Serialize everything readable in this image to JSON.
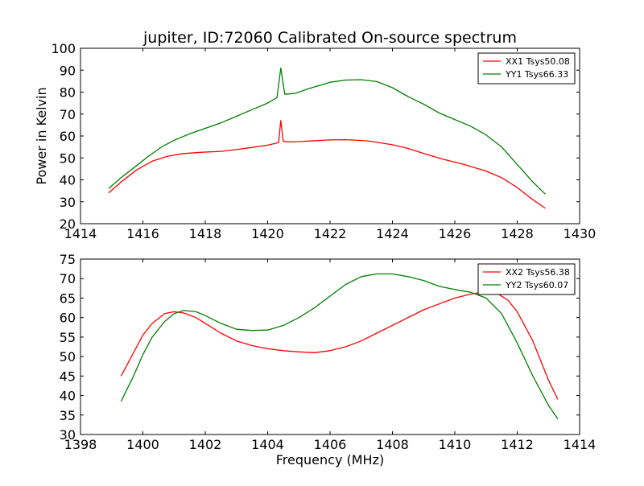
{
  "chart_data": {
    "title": "jupiter, ID:72060 Calibrated On-source spectrum",
    "xlabel": "Frequency (MHz)",
    "ylabel": "Power in Kelvin",
    "colors": {
      "XX": "#ff0000",
      "YY": "#008000"
    },
    "subplots": [
      {
        "type": "line",
        "xlim": [
          1414,
          1430
        ],
        "ylim": [
          20,
          100
        ],
        "xticks": [
          "1414",
          "1416",
          "1418",
          "1420",
          "1422",
          "1424",
          "1426",
          "1428",
          "1430"
        ],
        "yticks": [
          "20",
          "30",
          "40",
          "50",
          "60",
          "70",
          "80",
          "90",
          "100"
        ],
        "legend_position": "top-right",
        "series": [
          {
            "name": "XX1 Tsys50.08",
            "color": "#ff0000",
            "x": [
              1414.9,
              1415.3,
              1415.8,
              1416.3,
              1416.8,
              1417.3,
              1417.9,
              1418.5,
              1419.0,
              1419.5,
              1420.0,
              1420.35,
              1420.42,
              1420.5,
              1420.8,
              1421.3,
              1422.0,
              1422.5,
              1423.2,
              1424.0,
              1424.5,
              1425.0,
              1425.6,
              1426.3,
              1427.0,
              1427.5,
              1428.0,
              1428.4,
              1428.9
            ],
            "y": [
              34,
              39,
              44.5,
              48.5,
              50.8,
              52,
              52.6,
              53,
              53.8,
              54.8,
              55.8,
              57,
              67,
              57.5,
              57.3,
              57.7,
              58.2,
              58.3,
              57.8,
              56,
              54.3,
              52,
              49.5,
              47,
              44,
              41,
              36.5,
              32,
              27
            ]
          },
          {
            "name": "YY1 Tsys66.33",
            "color": "#008000",
            "x": [
              1414.9,
              1415.3,
              1415.8,
              1416.2,
              1416.6,
              1417.0,
              1417.5,
              1418.0,
              1418.5,
              1419.0,
              1419.5,
              1420.0,
              1420.3,
              1420.42,
              1420.55,
              1420.9,
              1421.3,
              1422.0,
              1422.5,
              1423.0,
              1423.5,
              1424.0,
              1424.5,
              1425.0,
              1425.5,
              1426.0,
              1426.5,
              1427.0,
              1427.5,
              1428.0,
              1428.5,
              1428.9
            ],
            "y": [
              36,
              41,
              46.5,
              51,
              55,
              58,
              61,
              63.5,
              66,
              69,
              72,
              75,
              77.5,
              91,
              79,
              79.5,
              81.5,
              84.5,
              85.5,
              85.7,
              84.8,
              82,
              78,
              74.5,
              70.5,
              67.5,
              64.5,
              60.5,
              55,
              47,
              39,
              33.5
            ]
          }
        ]
      },
      {
        "type": "line",
        "xlim": [
          1398,
          1414
        ],
        "ylim": [
          30,
          75
        ],
        "xticks": [
          "1398",
          "1400",
          "1402",
          "1404",
          "1406",
          "1408",
          "1410",
          "1412",
          "1414"
        ],
        "yticks": [
          "30",
          "35",
          "40",
          "45",
          "50",
          "55",
          "60",
          "65",
          "70",
          "75"
        ],
        "legend_position": "top-right",
        "series": [
          {
            "name": "XX2 Tsys56.38",
            "color": "#ff0000",
            "x": [
              1399.3,
              1399.7,
              1400.0,
              1400.3,
              1400.7,
              1401.0,
              1401.3,
              1401.7,
              1402.0,
              1402.5,
              1403.0,
              1403.5,
              1404.0,
              1404.5,
              1405.0,
              1405.5,
              1406.0,
              1406.5,
              1407.0,
              1407.5,
              1408.0,
              1408.5,
              1409.0,
              1409.5,
              1410.0,
              1410.5,
              1411.0,
              1411.3,
              1411.7,
              1412.0,
              1412.5,
              1413.0,
              1413.3
            ],
            "y": [
              45,
              51,
              55.5,
              58.5,
              61,
              61.5,
              61.2,
              60,
              58.5,
              56,
              54,
              52.8,
              52,
              51.5,
              51.2,
              51,
              51.5,
              52.5,
              54,
              56,
              58,
              60,
              62,
              63.5,
              65,
              66,
              66.7,
              66.5,
              64.5,
              61.5,
              54,
              44,
              39
            ]
          },
          {
            "name": "YY2 Tsys60.07",
            "color": "#008000",
            "x": [
              1399.3,
              1399.7,
              1400.0,
              1400.3,
              1400.7,
              1401.0,
              1401.3,
              1401.7,
              1402.0,
              1402.5,
              1403.0,
              1403.5,
              1404.0,
              1404.5,
              1405.0,
              1405.5,
              1406.0,
              1406.5,
              1407.0,
              1407.5,
              1408.0,
              1408.5,
              1409.0,
              1409.5,
              1410.0,
              1410.5,
              1411.0,
              1411.5,
              1412.0,
              1412.5,
              1413.0,
              1413.3
            ],
            "y": [
              38.5,
              45,
              50.5,
              55,
              59,
              61,
              61.8,
              61.5,
              60.5,
              58.5,
              57,
              56.7,
              56.8,
              58,
              60,
              62.5,
              65.5,
              68.5,
              70.5,
              71.2,
              71.2,
              70.5,
              69.5,
              68,
              67.2,
              66.5,
              65,
              61,
              53.5,
              45,
              37.5,
              34
            ]
          }
        ]
      }
    ]
  }
}
